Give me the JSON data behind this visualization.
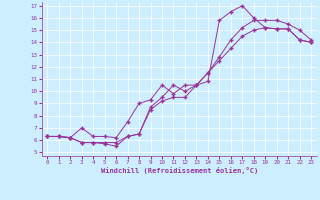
{
  "xlabel": "Windchill (Refroidissement éolien,°C)",
  "bg_color": "#cceeff",
  "line_color": "#993399",
  "grid_color": "#aaddcc",
  "xlim": [
    -0.5,
    23.5
  ],
  "ylim": [
    4.7,
    17.3
  ],
  "yticks": [
    5,
    6,
    7,
    8,
    9,
    10,
    11,
    12,
    13,
    14,
    15,
    16,
    17
  ],
  "xticks": [
    0,
    1,
    2,
    3,
    4,
    5,
    6,
    7,
    8,
    9,
    10,
    11,
    12,
    13,
    14,
    15,
    16,
    17,
    18,
    19,
    20,
    21,
    22,
    23
  ],
  "line1_x": [
    0,
    1,
    2,
    3,
    4,
    5,
    6,
    7,
    8,
    9,
    10,
    11,
    12,
    13,
    14,
    15,
    16,
    17,
    18,
    19,
    20,
    21,
    22,
    23
  ],
  "line1_y": [
    6.3,
    6.3,
    6.2,
    5.8,
    5.8,
    5.7,
    5.5,
    6.3,
    6.5,
    8.7,
    9.5,
    10.5,
    10.0,
    10.5,
    11.5,
    12.5,
    13.5,
    14.5,
    15.0,
    15.2,
    15.1,
    15.1,
    14.2,
    14.0
  ],
  "line2_x": [
    0,
    1,
    2,
    3,
    4,
    5,
    6,
    7,
    8,
    9,
    10,
    11,
    12,
    13,
    14,
    15,
    16,
    17,
    18,
    19,
    20,
    21,
    22,
    23
  ],
  "line2_y": [
    6.3,
    6.3,
    6.2,
    7.0,
    6.3,
    6.3,
    6.2,
    7.5,
    9.0,
    9.3,
    10.5,
    9.8,
    10.5,
    10.5,
    10.8,
    15.8,
    16.5,
    17.0,
    16.0,
    15.2,
    15.1,
    15.1,
    14.2,
    14.0
  ],
  "line3_x": [
    0,
    1,
    2,
    3,
    4,
    5,
    6,
    7,
    8,
    9,
    10,
    11,
    12,
    13,
    14,
    15,
    16,
    17,
    18,
    19,
    20,
    21,
    22,
    23
  ],
  "line3_y": [
    6.3,
    6.3,
    6.2,
    5.8,
    5.8,
    5.8,
    5.8,
    6.3,
    6.5,
    8.5,
    9.2,
    9.5,
    9.5,
    10.5,
    11.5,
    12.8,
    14.2,
    15.2,
    15.8,
    15.8,
    15.8,
    15.5,
    15.0,
    14.2
  ]
}
